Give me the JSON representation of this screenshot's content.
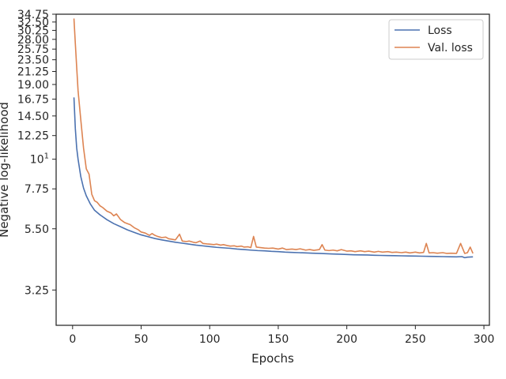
{
  "chart_data": {
    "type": "line",
    "xlabel": "Epochs",
    "ylabel": "Negative log-likelihood",
    "xlim": [
      -12,
      304
    ],
    "ylim": [
      2.4,
      34.75
    ],
    "yscale": "log",
    "grid": false,
    "legend_position": "top-right",
    "x_ticks": [
      0,
      50,
      100,
      150,
      200,
      250,
      300
    ],
    "x_tick_labels": [
      "0",
      "50",
      "100",
      "150",
      "200",
      "250",
      "300"
    ],
    "y_ticks": [
      3.25,
      5.5,
      7.75,
      10,
      12.25,
      14.5,
      16.75,
      19.0,
      21.25,
      23.5,
      25.75,
      28.0,
      30.25,
      32.5,
      34.75
    ],
    "y_tick_labels": [
      "3.25",
      "5.50",
      "7.75",
      "10",
      "12.25",
      "14.50",
      "16.75",
      "19.00",
      "21.25",
      "23.50",
      "25.75",
      "28.00",
      "30.25",
      "32.50",
      "34.75"
    ],
    "y_tick_superscripts": [
      "",
      "",
      "",
      "1",
      "",
      "",
      "",
      "",
      "",
      "",
      "",
      "",
      "",
      "",
      ""
    ],
    "series": [
      {
        "name": "Loss",
        "color": "#4c72b0",
        "points": [
          [
            1,
            17
          ],
          [
            2,
            13
          ],
          [
            3,
            11
          ],
          [
            4,
            10
          ],
          [
            6,
            8.6
          ],
          [
            8,
            7.8
          ],
          [
            10,
            7.3
          ],
          [
            13,
            6.8
          ],
          [
            16,
            6.45
          ],
          [
            20,
            6.2
          ],
          [
            25,
            5.95
          ],
          [
            30,
            5.75
          ],
          [
            35,
            5.6
          ],
          [
            40,
            5.45
          ],
          [
            45,
            5.33
          ],
          [
            50,
            5.22
          ],
          [
            55,
            5.14
          ],
          [
            60,
            5.06
          ],
          [
            65,
            5.0
          ],
          [
            70,
            4.95
          ],
          [
            75,
            4.9
          ],
          [
            80,
            4.86
          ],
          [
            85,
            4.82
          ],
          [
            90,
            4.78
          ],
          [
            95,
            4.75
          ],
          [
            100,
            4.72
          ],
          [
            105,
            4.69
          ],
          [
            110,
            4.67
          ],
          [
            115,
            4.65
          ],
          [
            120,
            4.62
          ],
          [
            125,
            4.6
          ],
          [
            130,
            4.58
          ],
          [
            135,
            4.56
          ],
          [
            140,
            4.55
          ],
          [
            145,
            4.53
          ],
          [
            150,
            4.52
          ],
          [
            155,
            4.5
          ],
          [
            160,
            4.49
          ],
          [
            165,
            4.48
          ],
          [
            170,
            4.47
          ],
          [
            175,
            4.46
          ],
          [
            180,
            4.45
          ],
          [
            185,
            4.44
          ],
          [
            190,
            4.43
          ],
          [
            195,
            4.42
          ],
          [
            200,
            4.41
          ],
          [
            205,
            4.4
          ],
          [
            210,
            4.395
          ],
          [
            215,
            4.39
          ],
          [
            220,
            4.38
          ],
          [
            225,
            4.375
          ],
          [
            230,
            4.37
          ],
          [
            235,
            4.365
          ],
          [
            240,
            4.36
          ],
          [
            245,
            4.355
          ],
          [
            250,
            4.35
          ],
          [
            255,
            4.345
          ],
          [
            260,
            4.34
          ],
          [
            265,
            4.335
          ],
          [
            270,
            4.33
          ],
          [
            275,
            4.325
          ],
          [
            280,
            4.32
          ],
          [
            284,
            4.33
          ],
          [
            286,
            4.29
          ],
          [
            288,
            4.31
          ],
          [
            292,
            4.32
          ]
        ]
      },
      {
        "name": "Val. loss",
        "color": "#dd8452",
        "points": [
          [
            1,
            33.5
          ],
          [
            2,
            27
          ],
          [
            3,
            22
          ],
          [
            4,
            18
          ],
          [
            6,
            14
          ],
          [
            8,
            11
          ],
          [
            10,
            9.2
          ],
          [
            12,
            8.8
          ],
          [
            14,
            7.4
          ],
          [
            16,
            7.0
          ],
          [
            18,
            6.9
          ],
          [
            20,
            6.7
          ],
          [
            22,
            6.6
          ],
          [
            25,
            6.4
          ],
          [
            28,
            6.3
          ],
          [
            30,
            6.15
          ],
          [
            32,
            6.25
          ],
          [
            35,
            5.95
          ],
          [
            38,
            5.8
          ],
          [
            40,
            5.75
          ],
          [
            42,
            5.7
          ],
          [
            45,
            5.55
          ],
          [
            48,
            5.45
          ],
          [
            50,
            5.35
          ],
          [
            53,
            5.3
          ],
          [
            56,
            5.2
          ],
          [
            58,
            5.28
          ],
          [
            60,
            5.2
          ],
          [
            62,
            5.15
          ],
          [
            65,
            5.1
          ],
          [
            68,
            5.12
          ],
          [
            70,
            5.05
          ],
          [
            73,
            5.02
          ],
          [
            75,
            5.0
          ],
          [
            78,
            5.25
          ],
          [
            80,
            4.95
          ],
          [
            83,
            4.93
          ],
          [
            85,
            4.95
          ],
          [
            88,
            4.9
          ],
          [
            90,
            4.88
          ],
          [
            93,
            4.95
          ],
          [
            95,
            4.85
          ],
          [
            98,
            4.83
          ],
          [
            100,
            4.82
          ],
          [
            103,
            4.8
          ],
          [
            105,
            4.82
          ],
          [
            108,
            4.78
          ],
          [
            110,
            4.8
          ],
          [
            113,
            4.76
          ],
          [
            115,
            4.74
          ],
          [
            118,
            4.75
          ],
          [
            120,
            4.72
          ],
          [
            123,
            4.74
          ],
          [
            125,
            4.7
          ],
          [
            128,
            4.71
          ],
          [
            130,
            4.68
          ],
          [
            132,
            5.15
          ],
          [
            134,
            4.7
          ],
          [
            137,
            4.68
          ],
          [
            140,
            4.66
          ],
          [
            143,
            4.65
          ],
          [
            146,
            4.66
          ],
          [
            150,
            4.62
          ],
          [
            153,
            4.66
          ],
          [
            156,
            4.6
          ],
          [
            160,
            4.62
          ],
          [
            163,
            4.6
          ],
          [
            166,
            4.63
          ],
          [
            170,
            4.58
          ],
          [
            173,
            4.6
          ],
          [
            176,
            4.57
          ],
          [
            180,
            4.6
          ],
          [
            182,
            4.8
          ],
          [
            184,
            4.58
          ],
          [
            187,
            4.56
          ],
          [
            190,
            4.58
          ],
          [
            193,
            4.55
          ],
          [
            196,
            4.6
          ],
          [
            200,
            4.54
          ],
          [
            203,
            4.55
          ],
          [
            206,
            4.52
          ],
          [
            210,
            4.55
          ],
          [
            213,
            4.52
          ],
          [
            216,
            4.54
          ],
          [
            220,
            4.5
          ],
          [
            223,
            4.53
          ],
          [
            226,
            4.5
          ],
          [
            230,
            4.52
          ],
          [
            233,
            4.49
          ],
          [
            236,
            4.5
          ],
          [
            240,
            4.48
          ],
          [
            243,
            4.5
          ],
          [
            246,
            4.47
          ],
          [
            250,
            4.5
          ],
          [
            253,
            4.47
          ],
          [
            256,
            4.49
          ],
          [
            258,
            4.85
          ],
          [
            260,
            4.47
          ],
          [
            263,
            4.48
          ],
          [
            266,
            4.46
          ],
          [
            270,
            4.48
          ],
          [
            273,
            4.45
          ],
          [
            276,
            4.46
          ],
          [
            280,
            4.45
          ],
          [
            283,
            4.85
          ],
          [
            286,
            4.45
          ],
          [
            288,
            4.48
          ],
          [
            290,
            4.7
          ],
          [
            292,
            4.45
          ]
        ]
      }
    ]
  }
}
